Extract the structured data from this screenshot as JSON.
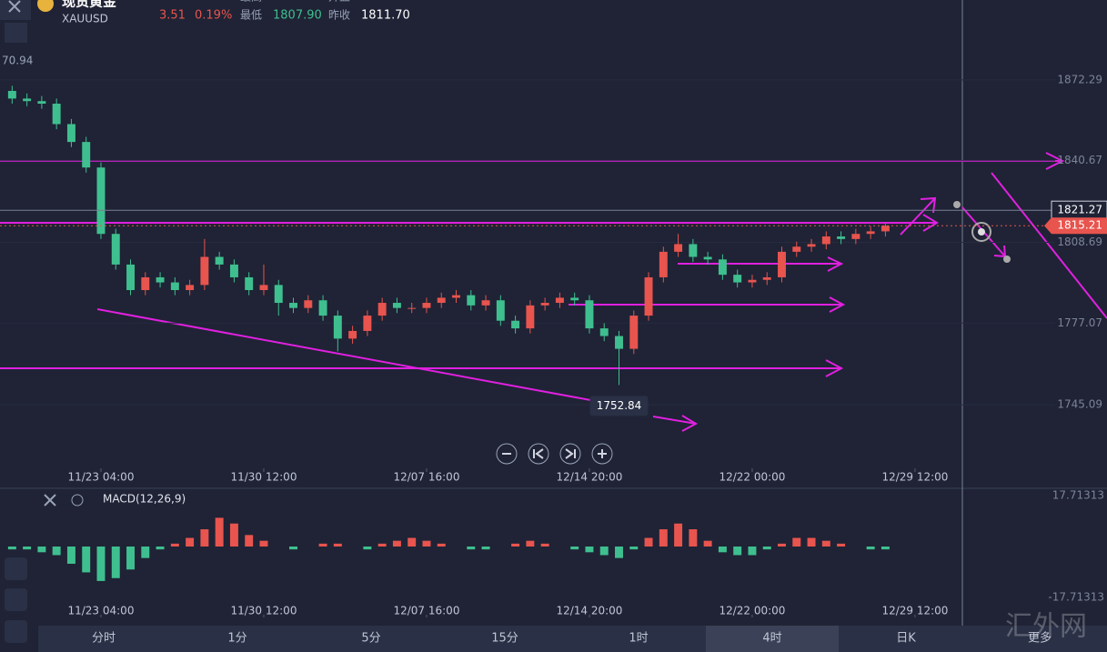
{
  "header": {
    "name": "现货黄金",
    "symbol": "XAUUSD",
    "change": 3.51,
    "change_pct": "0.19%",
    "labels": [
      "最高",
      "开盘",
      "最低",
      "昨收"
    ],
    "low": "1807.90",
    "prev_close": "1811.70",
    "left_cut": "70.94"
  },
  "chart_data": [
    {
      "type": "candlestick",
      "up_color": "#e8544e",
      "down_color": "#3fbf8f",
      "open": [
        1868,
        1865,
        1864,
        1863,
        1855,
        1848,
        1838,
        1812,
        1800,
        1790,
        1795,
        1793,
        1790,
        1792,
        1803,
        1800,
        1795,
        1790,
        1792,
        1785,
        1783,
        1786,
        1780,
        1771,
        1774,
        1780,
        1785,
        1783,
        1783,
        1785,
        1787,
        1788,
        1784,
        1786,
        1778,
        1775,
        1784,
        1785,
        1787,
        1786,
        1775,
        1772,
        1767,
        1780,
        1795,
        1805,
        1808,
        1803,
        1802,
        1796,
        1793,
        1794,
        1795,
        1805,
        1807,
        1808,
        1811,
        1810,
        1812,
        1813
      ],
      "high": [
        1870,
        1867,
        1866,
        1865,
        1857,
        1850,
        1840,
        1814,
        1802,
        1797,
        1797,
        1795,
        1794,
        1810,
        1805,
        1802,
        1797,
        1800,
        1794,
        1787,
        1788,
        1788,
        1782,
        1776,
        1782,
        1787,
        1787,
        1785,
        1787,
        1789,
        1790,
        1790,
        1788,
        1788,
        1780,
        1786,
        1787,
        1789,
        1789,
        1788,
        1777,
        1774,
        1782,
        1797,
        1807,
        1812,
        1810,
        1805,
        1804,
        1798,
        1796,
        1797,
        1807,
        1809,
        1810,
        1813,
        1813,
        1814,
        1815,
        1816
      ],
      "low": [
        1863,
        1862,
        1861,
        1853,
        1846,
        1836,
        1810,
        1798,
        1788,
        1788,
        1791,
        1788,
        1788,
        1790,
        1798,
        1793,
        1788,
        1788,
        1780,
        1781,
        1781,
        1778,
        1766,
        1769,
        1772,
        1778,
        1781,
        1781,
        1781,
        1783,
        1785,
        1782,
        1782,
        1776,
        1773,
        1773,
        1782,
        1783,
        1784,
        1773,
        1770,
        1752.84,
        1765,
        1778,
        1793,
        1803,
        1801,
        1800,
        1794,
        1791,
        1791,
        1792,
        1793,
        1803,
        1805,
        1806,
        1808,
        1808,
        1810,
        1811
      ],
      "close": [
        1865,
        1864,
        1863,
        1855,
        1848,
        1838,
        1812,
        1800,
        1790,
        1795,
        1793,
        1790,
        1792,
        1803,
        1800,
        1795,
        1790,
        1792,
        1785,
        1783,
        1786,
        1780,
        1771,
        1774,
        1780,
        1785,
        1783,
        1783,
        1785,
        1787,
        1788,
        1784,
        1786,
        1778,
        1775,
        1784,
        1785,
        1787,
        1786,
        1775,
        1772,
        1767,
        1780,
        1795,
        1805,
        1808,
        1803,
        1802,
        1796,
        1793,
        1794,
        1795,
        1805,
        1807,
        1808,
        1811,
        1810,
        1812,
        1813,
        1815.21
      ],
      "ylim": [
        1720.2,
        1903.6
      ],
      "yticks": [
        1872.29,
        1840.67,
        1808.69,
        1777.07,
        1745.09
      ],
      "crosshair": 1821.27,
      "xlim": [
        -0.82,
        70.16
      ],
      "xticks": [
        {
          "value": 6,
          "label": "11/23 04:00"
        },
        {
          "value": 17,
          "label": "11/30 12:00"
        },
        {
          "value": 28,
          "label": "12/07 16:00"
        },
        {
          "value": 39,
          "label": "12/14 20:00"
        },
        {
          "value": 50,
          "label": "12/22 00:00"
        },
        {
          "value": 61,
          "label": "12/29 12:00"
        }
      ]
    },
    {
      "type": "bar",
      "title": "MACD(12,26,9)",
      "up_color": "#e8544e",
      "down_color": "#3fbf8f",
      "values": [
        -1,
        -1,
        -2,
        -3,
        -6,
        -9,
        -12,
        -11,
        -8,
        -4,
        -1,
        1,
        3,
        6,
        10,
        8,
        4,
        2,
        0,
        -1,
        0,
        1,
        1,
        0,
        -1,
        1,
        2,
        3,
        2,
        1,
        0,
        -1,
        -1,
        0,
        1,
        2,
        1,
        0,
        -1,
        -2,
        -3,
        -4,
        -1,
        3,
        6,
        8,
        6,
        2,
        -2,
        -3,
        -3,
        -1,
        1,
        3,
        3,
        2,
        1,
        0,
        -1,
        -1
      ],
      "ylim": [
        -19.5,
        19.5
      ],
      "yticks": [
        17.71313,
        -17.71313
      ],
      "xlim": [
        -0.82,
        70.16
      ],
      "xticks": [
        {
          "value": 6,
          "label": "11/23 04:00"
        },
        {
          "value": 17,
          "label": "11/30 12:00"
        },
        {
          "value": 28,
          "label": "12/07 16:00"
        },
        {
          "value": 39,
          "label": "12/14 20:00"
        },
        {
          "value": 50,
          "label": "12/22 00:00"
        },
        {
          "value": 61,
          "label": "12/29 12:00"
        }
      ]
    }
  ],
  "tabs": [
    "分时",
    "1分",
    "5分",
    "15分",
    "1时",
    "4时",
    "日K",
    "更多"
  ],
  "active_tab": 5,
  "watermark": "汇外网"
}
